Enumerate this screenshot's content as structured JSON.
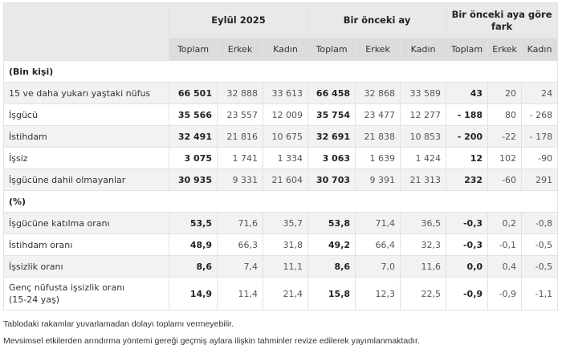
{
  "table": {
    "group_headers": [
      "Eylül 2025",
      "Bir önceki ay",
      "Bir önceki aya göre fark"
    ],
    "sub_headers": [
      "Toplam",
      "Erkek",
      "Kadın",
      "Toplam",
      "Erkek",
      "Kadın",
      "Toplam",
      "Erkek",
      "Kadın"
    ],
    "section_counts": "(Bin kişi)",
    "rows_counts": [
      {
        "label": "15 ve daha yukarı yaştaki nüfus",
        "values": [
          "66 501",
          "32 888",
          "33 613",
          "66 458",
          "32 868",
          "33 589",
          "43",
          "20",
          "24"
        ]
      },
      {
        "label": "İşgücü",
        "values": [
          "35 566",
          "23 557",
          "12 009",
          "35 754",
          "23 477",
          "12 277",
          "- 188",
          "80",
          "- 268"
        ]
      },
      {
        "label": "İstihdam",
        "values": [
          "32 491",
          "21 816",
          "10 675",
          "32 691",
          "21 838",
          "10 853",
          "- 200",
          "-22",
          "- 178"
        ]
      },
      {
        "label": "İşsiz",
        "values": [
          "3 075",
          "1 741",
          "1 334",
          "3 063",
          "1 639",
          "1 424",
          "12",
          "102",
          "-90"
        ]
      },
      {
        "label": "İşgücüne dahil olmayanlar",
        "values": [
          "30 935",
          "9 331",
          "21 604",
          "30 703",
          "9 391",
          "21 313",
          "232",
          "-60",
          "291"
        ]
      }
    ],
    "section_rates": "(%)",
    "rows_rates": [
      {
        "label": "İşgücüne katılma oranı",
        "values": [
          "53,5",
          "71,6",
          "35,7",
          "53,8",
          "71,4",
          "36,5",
          "-0,3",
          "0,2",
          "-0,8"
        ]
      },
      {
        "label": "İstihdam oranı",
        "values": [
          "48,9",
          "66,3",
          "31,8",
          "49,2",
          "66,4",
          "32,3",
          "-0,3",
          "-0,1",
          "-0,5"
        ]
      },
      {
        "label": "İşsizlik oranı",
        "values": [
          "8,6",
          "7,4",
          "11,1",
          "8,6",
          "7,0",
          "11,6",
          "0,0",
          "0,4",
          "-0,5"
        ]
      },
      {
        "label": "Genç nüfusta işsizlik oranı",
        "label_line2": "(15-24 yaş)",
        "values": [
          "14,9",
          "11,4",
          "21,4",
          "15,8",
          "12,3",
          "22,5",
          "-0,9",
          "-0,9",
          "-1,1"
        ]
      }
    ]
  },
  "notes": [
    "Tablodaki rakamlar yuvarlamadan dolayı toplamı vermeyebilir.",
    "Mevsimsel etkilerden arındırma yöntemi gereği geçmiş aylara ilişkin tahminler revize edilerek yayımlanmaktadır."
  ],
  "colors": {
    "header_bg": "#e9e9e9",
    "subheader_bg": "#dcdcdc",
    "row_alt_bg": "#f2f2f2",
    "border": "#e2e2e2"
  }
}
